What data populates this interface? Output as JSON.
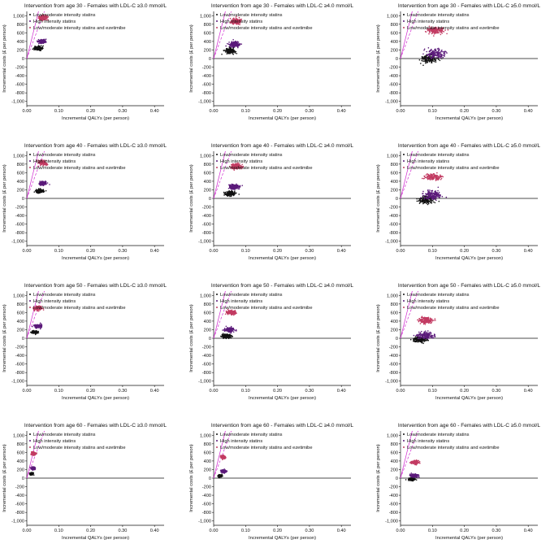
{
  "figure": {
    "xlabel": "Incremental QALYs (per person)",
    "ylabel": "Incremental costs (£ per person)",
    "legend_labels": [
      "Low/moderate intensity statins",
      "High intensity statins",
      "Low/moderate intensity statins and ezetimibe"
    ]
  },
  "colors": {
    "low_moderate": "#111111",
    "high": "#5b1a7a",
    "ezetimibe": "#c23b62",
    "threshold_lines": "#d02ad0",
    "axis": "#111111"
  },
  "chart_data": [
    {
      "type": "scatter",
      "title": "Intervention from age 30 - Females with LDL-C ≥3.0 mmol/L",
      "xlabel": "Incremental QALYs (per person)",
      "ylabel": "Incremental costs (£ per person)",
      "xlim": [
        0,
        0.43
      ],
      "ylim": [
        -1100,
        1100
      ],
      "xticks": [
        "0.00",
        "0.10",
        "0.20",
        "0.30",
        "0.40"
      ],
      "yticks": [
        "1,000",
        "800",
        "600",
        "400",
        "200",
        "0",
        "-200",
        "-400",
        "-600",
        "-800",
        "-1,000"
      ],
      "legend_position": "top-left",
      "series": [
        {
          "name": "Low/moderate intensity statins",
          "center": [
            0.035,
            240
          ],
          "spread": [
            0.012,
            45
          ]
        },
        {
          "name": "High intensity statins",
          "center": [
            0.048,
            400
          ],
          "spread": [
            0.012,
            45
          ]
        },
        {
          "name": "Low/moderate intensity statins and ezetimibe",
          "center": [
            0.05,
            950
          ],
          "spread": [
            0.013,
            55
          ]
        }
      ]
    },
    {
      "type": "scatter",
      "title": "Intervention from age 30 - Females with LDL-C ≥4.0 mmol/L",
      "xlabel": "Incremental QALYs (per person)",
      "ylabel": "Incremental costs (£ per person)",
      "xlim": [
        0,
        0.43
      ],
      "ylim": [
        -1100,
        1100
      ],
      "xticks": [
        "0.00",
        "0.10",
        "0.20",
        "0.30",
        "0.40"
      ],
      "yticks": [
        "1,000",
        "800",
        "600",
        "400",
        "200",
        "0",
        "-200",
        "-400",
        "-600",
        "-800",
        "-1,000"
      ],
      "legend_position": "top-left",
      "series": [
        {
          "name": "Low/moderate intensity statins",
          "center": [
            0.05,
            180
          ],
          "spread": [
            0.015,
            60
          ]
        },
        {
          "name": "High intensity statins",
          "center": [
            0.065,
            330
          ],
          "spread": [
            0.016,
            60
          ]
        },
        {
          "name": "Low/moderate intensity statins and ezetimibe",
          "center": [
            0.07,
            870
          ],
          "spread": [
            0.017,
            65
          ]
        }
      ]
    },
    {
      "type": "scatter",
      "title": "Intervention from age 30 - Females with LDL-C ≥5.0 mmol/L",
      "xlabel": "Incremental QALYs (per person)",
      "ylabel": "Incremental costs (£ per person)",
      "xlim": [
        0,
        0.43
      ],
      "ylim": [
        -1100,
        1100
      ],
      "xticks": [
        "0.00",
        "0.10",
        "0.20",
        "0.30",
        "0.40"
      ],
      "yticks": [
        "1,000",
        "800",
        "600",
        "400",
        "200",
        "0",
        "-200",
        "-400",
        "-600",
        "-800",
        "-1,000"
      ],
      "legend_position": "top-left",
      "series": [
        {
          "name": "Low/moderate intensity statins",
          "center": [
            0.09,
            0
          ],
          "spread": [
            0.025,
            90
          ]
        },
        {
          "name": "High intensity statins",
          "center": [
            0.11,
            110
          ],
          "spread": [
            0.028,
            100
          ]
        },
        {
          "name": "Low/moderate intensity statins and ezetimibe",
          "center": [
            0.11,
            660
          ],
          "spread": [
            0.025,
            80
          ]
        }
      ]
    },
    {
      "type": "scatter",
      "title": "Intervention from age 40 - Females with LDL-C ≥3.0 mmol/L",
      "xlabel": "Incremental QALYs (per person)",
      "ylabel": "Incremental costs (£ per person)",
      "xlim": [
        0,
        0.43
      ],
      "ylim": [
        -1100,
        1100
      ],
      "xticks": [
        "0.00",
        "0.10",
        "0.20",
        "0.30",
        "0.40"
      ],
      "yticks": [
        "1,000",
        "800",
        "600",
        "400",
        "200",
        "0",
        "-200",
        "-400",
        "-600",
        "-800",
        "-1,000"
      ],
      "legend_position": "top-left",
      "series": [
        {
          "name": "Low/moderate intensity statins",
          "center": [
            0.04,
            170
          ],
          "spread": [
            0.012,
            40
          ]
        },
        {
          "name": "High intensity statins",
          "center": [
            0.05,
            350
          ],
          "spread": [
            0.012,
            45
          ]
        },
        {
          "name": "Low/moderate intensity statins and ezetimibe",
          "center": [
            0.05,
            830
          ],
          "spread": [
            0.013,
            55
          ]
        }
      ]
    },
    {
      "type": "scatter",
      "title": "Intervention from age 40 - Females with LDL-C ≥4.0 mmol/L",
      "xlabel": "Incremental QALYs (per person)",
      "ylabel": "Incremental costs (£ per person)",
      "xlim": [
        0,
        0.43
      ],
      "ylim": [
        -1100,
        1100
      ],
      "xticks": [
        "0.00",
        "0.10",
        "0.20",
        "0.30",
        "0.40"
      ],
      "yticks": [
        "1,000",
        "800",
        "600",
        "400",
        "200",
        "0",
        "-200",
        "-400",
        "-600",
        "-800",
        "-1,000"
      ],
      "legend_position": "top-left",
      "series": [
        {
          "name": "Low/moderate intensity statins",
          "center": [
            0.05,
            110
          ],
          "spread": [
            0.015,
            55
          ]
        },
        {
          "name": "High intensity statins",
          "center": [
            0.065,
            270
          ],
          "spread": [
            0.016,
            60
          ]
        },
        {
          "name": "Low/moderate intensity statins and ezetimibe",
          "center": [
            0.07,
            750
          ],
          "spread": [
            0.016,
            60
          ]
        }
      ]
    },
    {
      "type": "scatter",
      "title": "Intervention from age 40 - Females with LDL-C ≥5.0 mmol/L",
      "xlabel": "Incremental QALYs (per person)",
      "ylabel": "Incremental costs (£ per person)",
      "xlim": [
        0,
        0.43
      ],
      "ylim": [
        -1100,
        1100
      ],
      "xticks": [
        "0.00",
        "0.10",
        "0.20",
        "0.30",
        "0.40"
      ],
      "yticks": [
        "1,000",
        "800",
        "600",
        "400",
        "200",
        "0",
        "-200",
        "-400",
        "-600",
        "-800",
        "-1,000"
      ],
      "legend_position": "top-left",
      "series": [
        {
          "name": "Low/moderate intensity statins",
          "center": [
            0.08,
            -30
          ],
          "spread": [
            0.025,
            85
          ]
        },
        {
          "name": "High intensity statins",
          "center": [
            0.1,
            70
          ],
          "spread": [
            0.028,
            95
          ]
        },
        {
          "name": "Low/moderate intensity statins and ezetimibe",
          "center": [
            0.1,
            500
          ],
          "spread": [
            0.025,
            75
          ]
        }
      ]
    },
    {
      "type": "scatter",
      "title": "Intervention from age 50 - Females with LDL-C ≥3.0 mmol/L",
      "xlabel": "Incremental QALYs (per person)",
      "ylabel": "Incremental costs (£ per person)",
      "xlim": [
        0,
        0.43
      ],
      "ylim": [
        -1100,
        1100
      ],
      "xticks": [
        "0.00",
        "0.10",
        "0.20",
        "0.30",
        "0.40"
      ],
      "yticks": [
        "1,000",
        "800",
        "600",
        "400",
        "200",
        "0",
        "-200",
        "-400",
        "-600",
        "-800",
        "-1,000"
      ],
      "legend_position": "top-left",
      "series": [
        {
          "name": "Low/moderate intensity statins",
          "center": [
            0.025,
            140
          ],
          "spread": [
            0.01,
            35
          ]
        },
        {
          "name": "High intensity statins",
          "center": [
            0.035,
            280
          ],
          "spread": [
            0.01,
            40
          ]
        },
        {
          "name": "Low/moderate intensity statins and ezetimibe",
          "center": [
            0.035,
            700
          ],
          "spread": [
            0.011,
            45
          ]
        }
      ]
    },
    {
      "type": "scatter",
      "title": "Intervention from age 50 - Females with LDL-C ≥4.0 mmol/L",
      "xlabel": "Incremental QALYs (per person)",
      "ylabel": "Incremental costs (£ per person)",
      "xlim": [
        0,
        0.43
      ],
      "ylim": [
        -1100,
        1100
      ],
      "xticks": [
        "0.00",
        "0.10",
        "0.20",
        "0.30",
        "0.40"
      ],
      "yticks": [
        "1,000",
        "800",
        "600",
        "400",
        "200",
        "0",
        "-200",
        "-400",
        "-600",
        "-800",
        "-1,000"
      ],
      "legend_position": "top-left",
      "series": [
        {
          "name": "Low/moderate intensity statins",
          "center": [
            0.04,
            50
          ],
          "spread": [
            0.013,
            45
          ]
        },
        {
          "name": "High intensity statins",
          "center": [
            0.05,
            200
          ],
          "spread": [
            0.014,
            50
          ]
        },
        {
          "name": "Low/moderate intensity statins and ezetimibe",
          "center": [
            0.055,
            600
          ],
          "spread": [
            0.014,
            50
          ]
        }
      ]
    },
    {
      "type": "scatter",
      "title": "Intervention from age 50 - Females with LDL-C ≥5.0 mmol/L",
      "xlabel": "Incremental QALYs (per person)",
      "ylabel": "Incremental costs (£ per person)",
      "xlim": [
        0,
        0.43
      ],
      "ylim": [
        -1100,
        1100
      ],
      "xticks": [
        "0.00",
        "0.10",
        "0.20",
        "0.30",
        "0.40"
      ],
      "yticks": [
        "1,000",
        "800",
        "600",
        "400",
        "200",
        "0",
        "-200",
        "-400",
        "-600",
        "-800",
        "-1,000"
      ],
      "legend_position": "top-left",
      "series": [
        {
          "name": "Low/moderate intensity statins",
          "center": [
            0.06,
            -30
          ],
          "spread": [
            0.022,
            70
          ]
        },
        {
          "name": "High intensity statins",
          "center": [
            0.08,
            60
          ],
          "spread": [
            0.025,
            80
          ]
        },
        {
          "name": "Low/moderate intensity statins and ezetimibe",
          "center": [
            0.08,
            420
          ],
          "spread": [
            0.022,
            70
          ]
        }
      ]
    },
    {
      "type": "scatter",
      "title": "Intervention from age 60 - Females with LDL-C ≥3.0 mmol/L",
      "xlabel": "Incremental QALYs (per person)",
      "ylabel": "Incremental costs (£ per person)",
      "xlim": [
        0,
        0.43
      ],
      "ylim": [
        -1100,
        1100
      ],
      "xticks": [
        "0.00",
        "0.10",
        "0.20",
        "0.30",
        "0.40"
      ],
      "yticks": [
        "1,000",
        "800",
        "600",
        "400",
        "200",
        "0",
        "-200",
        "-400",
        "-600",
        "-800",
        "-1,000"
      ],
      "legend_position": "top-left",
      "series": [
        {
          "name": "Low/moderate intensity statins",
          "center": [
            0.015,
            100
          ],
          "spread": [
            0.005,
            25
          ]
        },
        {
          "name": "High intensity statins",
          "center": [
            0.02,
            230
          ],
          "spread": [
            0.006,
            30
          ]
        },
        {
          "name": "Low/moderate intensity statins and ezetimibe",
          "center": [
            0.022,
            570
          ],
          "spread": [
            0.006,
            35
          ]
        }
      ]
    },
    {
      "type": "scatter",
      "title": "Intervention from age 60 - Females with LDL-C ≥4.0 mmol/L",
      "xlabel": "Incremental QALYs (per person)",
      "ylabel": "Incremental costs (£ per person)",
      "xlim": [
        0,
        0.43
      ],
      "ylim": [
        -1100,
        1100
      ],
      "xticks": [
        "0.00",
        "0.10",
        "0.20",
        "0.30",
        "0.40"
      ],
      "yticks": [
        "1,000",
        "800",
        "600",
        "400",
        "200",
        "0",
        "-200",
        "-400",
        "-600",
        "-800",
        "-1,000"
      ],
      "legend_position": "top-left",
      "series": [
        {
          "name": "Low/moderate intensity statins",
          "center": [
            0.02,
            50
          ],
          "spread": [
            0.006,
            25
          ]
        },
        {
          "name": "High intensity statins",
          "center": [
            0.03,
            160
          ],
          "spread": [
            0.007,
            30
          ]
        },
        {
          "name": "Low/moderate intensity statins and ezetimibe",
          "center": [
            0.03,
            490
          ],
          "spread": [
            0.007,
            35
          ]
        }
      ]
    },
    {
      "type": "scatter",
      "title": "Intervention from age 60 - Females with LDL-C ≥5.0 mmol/L",
      "xlabel": "Incremental QALYs (per person)",
      "ylabel": "Incremental costs (£ per person)",
      "xlim": [
        0,
        0.43
      ],
      "ylim": [
        -1100,
        1100
      ],
      "xticks": [
        "0.00",
        "0.10",
        "0.20",
        "0.30",
        "0.40"
      ],
      "yticks": [
        "1,000",
        "800",
        "600",
        "400",
        "200",
        "0",
        "-200",
        "-400",
        "-600",
        "-800",
        "-1,000"
      ],
      "legend_position": "top-left",
      "series": [
        {
          "name": "Low/moderate intensity statins",
          "center": [
            0.035,
            -30
          ],
          "spread": [
            0.01,
            30
          ]
        },
        {
          "name": "High intensity statins",
          "center": [
            0.045,
            60
          ],
          "spread": [
            0.012,
            40
          ]
        },
        {
          "name": "Low/moderate intensity statins and ezetimibe",
          "center": [
            0.045,
            370
          ],
          "spread": [
            0.011,
            40
          ]
        }
      ]
    }
  ]
}
